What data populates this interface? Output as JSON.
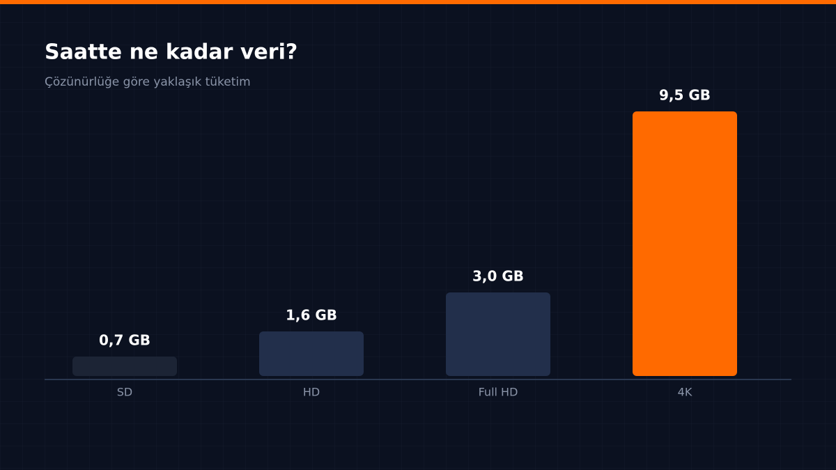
{
  "chart_data": {
    "type": "bar",
    "title": "Saatte ne kadar veri?",
    "subtitle": "Çözünürlüğe göre yaklaşık tüketim",
    "categories": [
      "SD",
      "HD",
      "Full HD",
      "4K"
    ],
    "values": [
      0.7,
      1.6,
      3.0,
      9.5
    ],
    "value_labels": [
      "0,7 GB",
      "1,6 GB",
      "3,0 GB",
      "9,5 GB"
    ],
    "colors": [
      "#1c2435",
      "#222f4b",
      "#222f4b",
      "#ff6a00"
    ]
  }
}
